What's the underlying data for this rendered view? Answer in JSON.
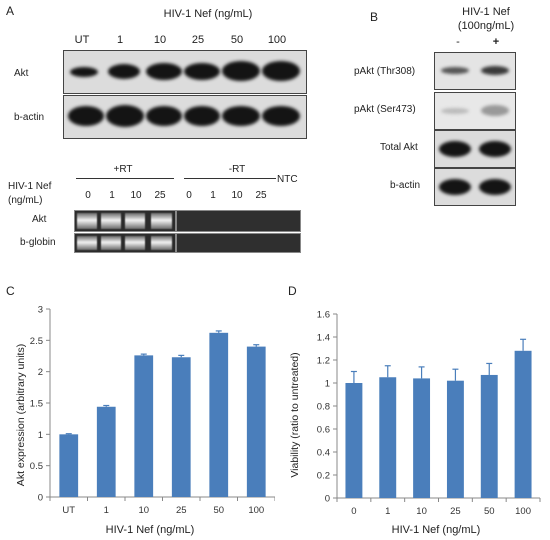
{
  "panel_a": {
    "letter": "A",
    "header": "HIV-1 Nef (ng/mL)",
    "lanes": [
      "UT",
      "1",
      "10",
      "25",
      "50",
      "100"
    ],
    "blot_labels": [
      "Akt",
      "b-actin"
    ],
    "pcr": {
      "nef_label_line1": "HIV-1 Nef",
      "nef_label_line2": "(ng/mL)",
      "plus_rt": "+RT",
      "minus_rt": "-RT",
      "ntc": "NTC",
      "lanes_plus": [
        "0",
        "1",
        "10",
        "25"
      ],
      "lanes_minus": [
        "0",
        "1",
        "10",
        "25"
      ],
      "rows": [
        "Akt",
        "b-globin"
      ]
    }
  },
  "panel_b": {
    "letter": "B",
    "header_line1": "HIV-1 Nef",
    "header_line2": "(100ng/mL)",
    "minus": "-",
    "plus": "+",
    "rows": [
      "pAkt (Thr308)",
      "pAkt (Ser473)",
      "Total Akt",
      "b-actin"
    ]
  },
  "panel_c": {
    "letter": "C"
  },
  "panel_d": {
    "letter": "D"
  },
  "chart_data": [
    {
      "type": "bar",
      "panel": "C",
      "categories": [
        "UT",
        "1",
        "10",
        "25",
        "50",
        "100"
      ],
      "values": [
        1.0,
        1.44,
        2.26,
        2.23,
        2.62,
        2.4
      ],
      "errors": [
        0.01,
        0.02,
        0.02,
        0.03,
        0.03,
        0.03
      ],
      "xlabel": "HIV-1 Nef (ng/mL)",
      "ylabel": "Akt expression (arbitrary units)",
      "ylim": [
        0,
        3
      ],
      "yticks": [
        "0",
        "0.5",
        "1",
        "1.5",
        "2",
        "2.5",
        "3"
      ],
      "color": "#4a7ebb",
      "grid": false
    },
    {
      "type": "bar",
      "panel": "D",
      "categories": [
        "0",
        "1",
        "10",
        "25",
        "50",
        "100"
      ],
      "values": [
        1.0,
        1.05,
        1.04,
        1.02,
        1.07,
        1.28
      ],
      "errors": [
        0.1,
        0.1,
        0.1,
        0.1,
        0.1,
        0.1
      ],
      "xlabel": "HIV-1 Nef (ng/mL)",
      "ylabel": "Viability (ratio to untreated)",
      "ylim": [
        0,
        1.6
      ],
      "yticks": [
        "0",
        "0.2",
        "0.4",
        "0.6",
        "0.8",
        "1",
        "1.2",
        "1.4",
        "1.6"
      ],
      "color": "#4a7ebb",
      "grid": false
    }
  ]
}
